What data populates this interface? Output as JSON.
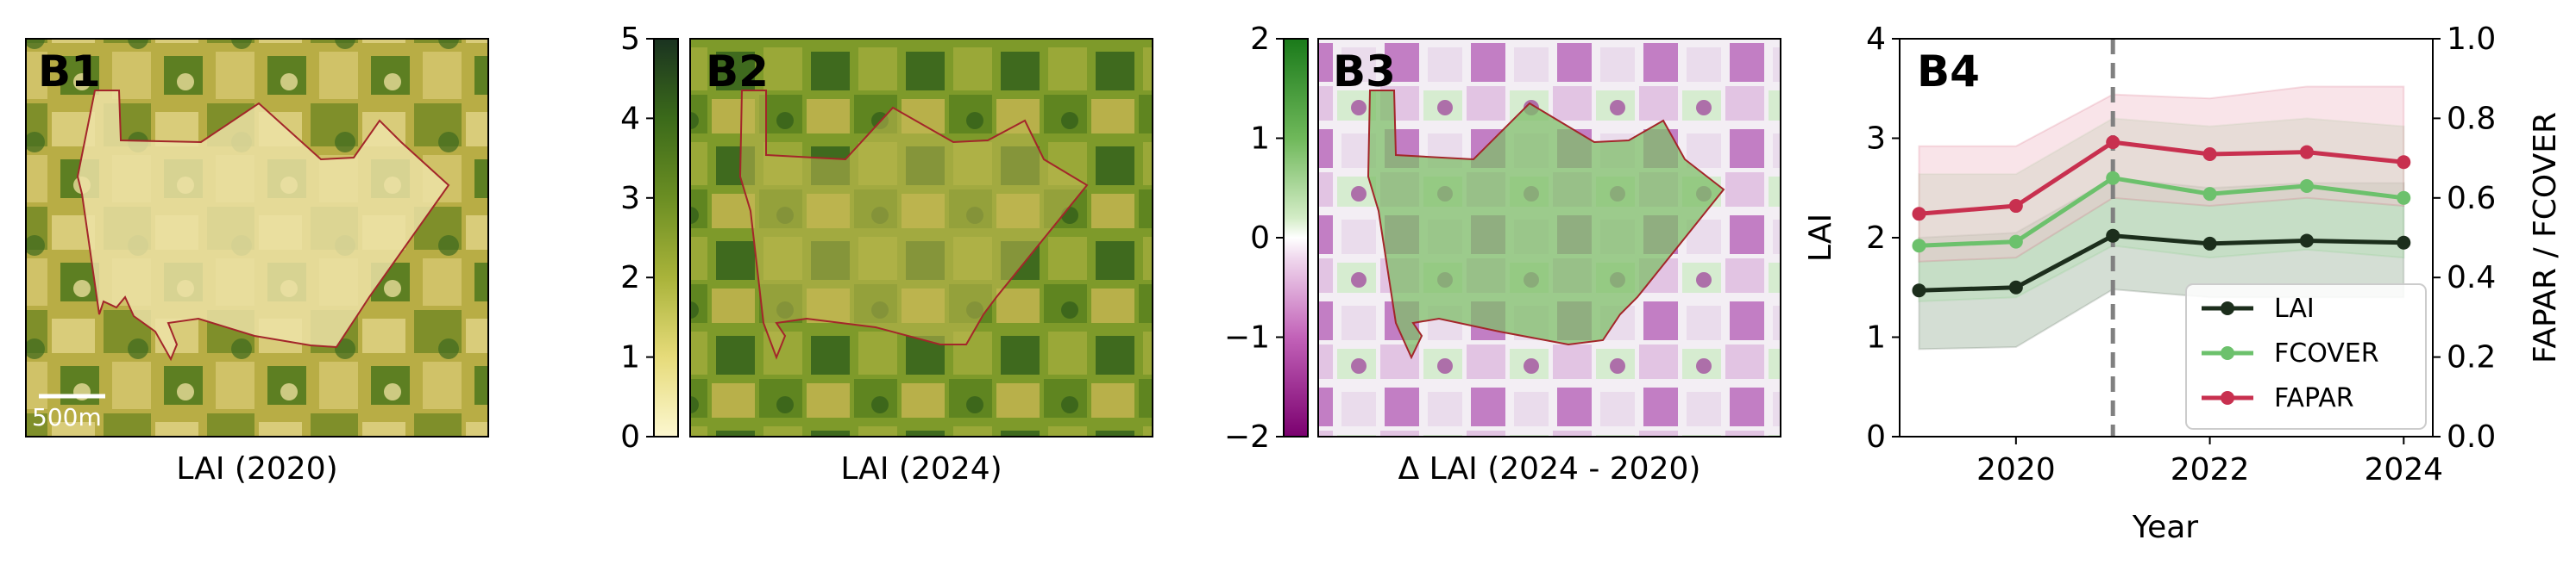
{
  "panels": [
    {
      "id": "B1",
      "label": "B1",
      "caption": "LAI (2020)",
      "scalebar": "500m"
    },
    {
      "id": "B2",
      "label": "B2",
      "caption": "LAI (2024)"
    },
    {
      "id": "B3",
      "label": "B3",
      "caption": "Δ LAI (2024 - 2020)"
    }
  ],
  "colorbars": [
    {
      "name": "lai-colorbar",
      "ticks": [
        "0",
        "1",
        "2",
        "3",
        "4",
        "5"
      ],
      "min": 0,
      "max": 5,
      "colors": [
        "#fcf7d0",
        "#e6db7a",
        "#a9b33a",
        "#6b8e23",
        "#3b6a1a",
        "#1a3320"
      ]
    },
    {
      "name": "delta-colorbar",
      "ticks": [
        "−2",
        "−1",
        "0",
        "1",
        "2"
      ],
      "min": -2,
      "max": 2,
      "colors": [
        "#7b006f",
        "#c262b8",
        "#f0d9ee",
        "#ffffff",
        "#d3ecc6",
        "#6fb85a",
        "#1a7a1a"
      ]
    }
  ],
  "chart_data": {
    "label": "B4",
    "type": "line",
    "xlabel": "Year",
    "ylabel": "LAI",
    "y2label": "FAPAR / FCOVER",
    "xlim": [
      2018.8,
      2024.3
    ],
    "ylim": [
      0,
      4
    ],
    "y2lim": [
      0,
      1.0
    ],
    "xticks": [
      "2020",
      "2022",
      "2024"
    ],
    "yticks": [
      "0",
      "1",
      "2",
      "3",
      "4"
    ],
    "y2ticks": [
      "0.0",
      "0.2",
      "0.4",
      "0.6",
      "0.8",
      "1.0"
    ],
    "vline_x": 2021,
    "legend_position": "lower-right",
    "x": [
      2019,
      2020,
      2021,
      2022,
      2023,
      2024
    ],
    "series": [
      {
        "name": "LAI",
        "axis": "left",
        "color": "#1c2e1c",
        "fill": "#9fb59f",
        "values": [
          1.47,
          1.5,
          2.02,
          1.94,
          1.97,
          1.95
        ],
        "lower": [
          0.88,
          0.9,
          1.48,
          1.4,
          1.4,
          1.4
        ],
        "upper": [
          2.0,
          2.05,
          2.6,
          2.5,
          2.55,
          2.55
        ]
      },
      {
        "name": "FCOVER",
        "axis": "right",
        "color": "#6cc16c",
        "fill": "#b6ddb6",
        "values": [
          0.48,
          0.49,
          0.65,
          0.61,
          0.63,
          0.6
        ],
        "lower": [
          0.34,
          0.35,
          0.48,
          0.45,
          0.47,
          0.45
        ],
        "upper": [
          0.66,
          0.66,
          0.8,
          0.78,
          0.8,
          0.78
        ]
      },
      {
        "name": "FAPAR",
        "axis": "right",
        "color": "#c8304f",
        "fill": "#f2c4cf",
        "values": [
          0.56,
          0.58,
          0.74,
          0.71,
          0.715,
          0.69
        ],
        "lower": [
          0.44,
          0.45,
          0.6,
          0.58,
          0.6,
          0.58
        ],
        "upper": [
          0.73,
          0.73,
          0.86,
          0.85,
          0.88,
          0.88
        ]
      }
    ]
  }
}
